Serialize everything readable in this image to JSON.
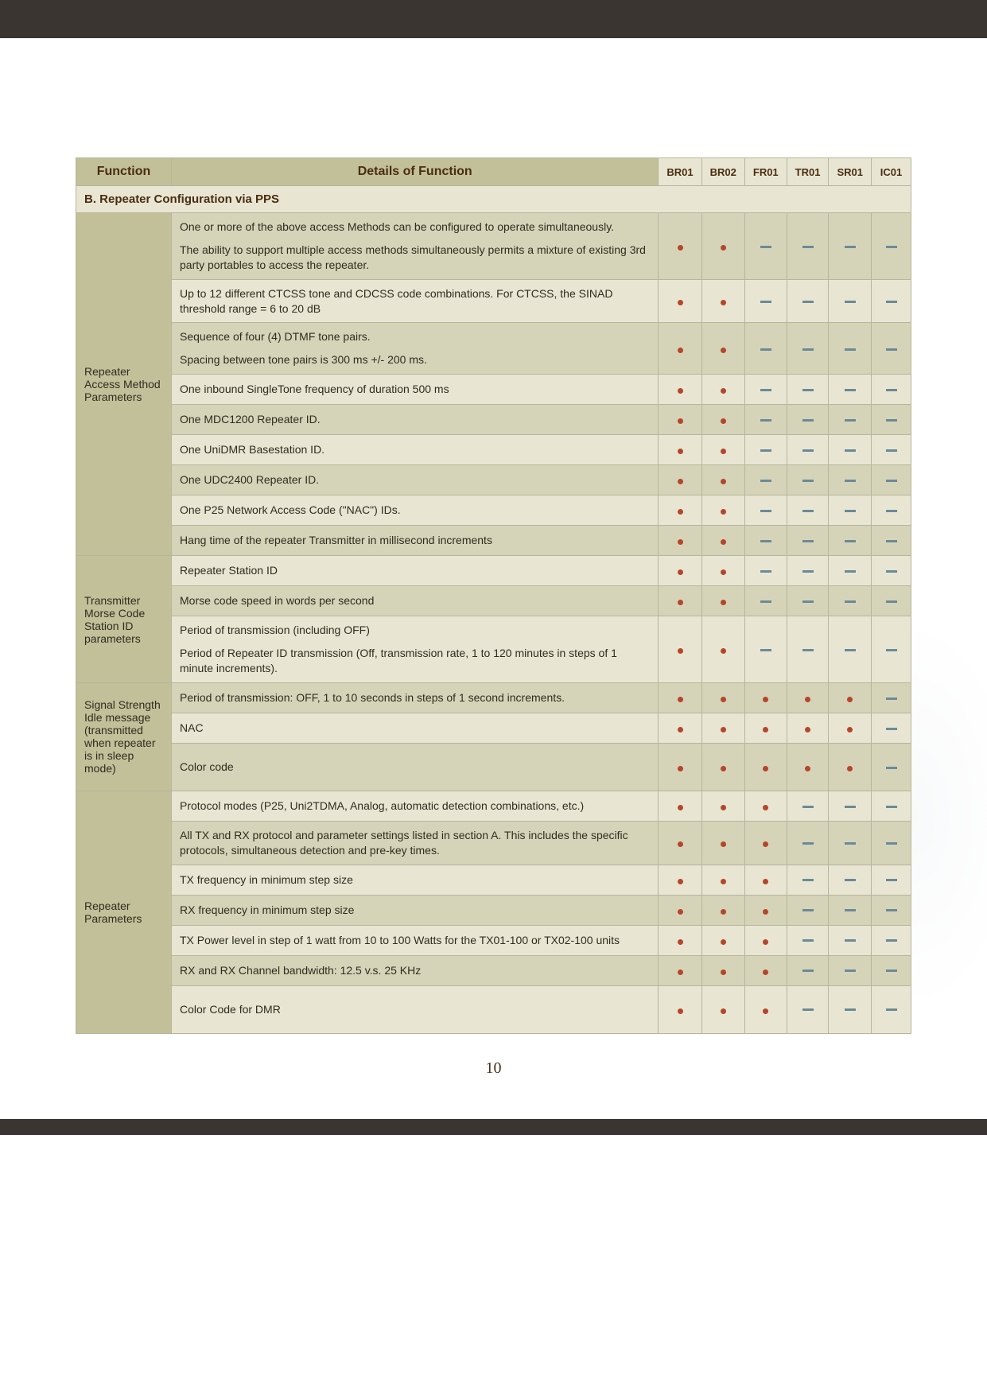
{
  "pageNumber": "10",
  "headers": {
    "function": "Function",
    "details": "Details of Function",
    "cols": [
      "BR01",
      "BR02",
      "FR01",
      "TR01",
      "SR01",
      "IC01"
    ]
  },
  "sectionTitle": "B. Repeater Configuration via PPS",
  "groups": [
    {
      "function": "Repeater Access Method Parameters",
      "rows": [
        {
          "shade": "dark",
          "detailsA": "One or more of the above access Methods can be configured to operate simultaneously.",
          "detailsB": "The ability to support multiple access methods simultaneously permits a mixture of existing 3rd party portables to access the repeater.",
          "marks": [
            "dot",
            "dot",
            "dash",
            "dash",
            "dash",
            "dash"
          ]
        },
        {
          "shade": "light",
          "details": "Up to 12 different CTCSS tone and CDCSS code combinations. For CTCSS, the SINAD threshold range = 6 to 20 dB",
          "marks": [
            "dot",
            "dot",
            "dash",
            "dash",
            "dash",
            "dash"
          ]
        },
        {
          "shade": "dark",
          "detailsA": "Sequence of four (4) DTMF tone pairs.",
          "detailsB": "Spacing between tone pairs is 300 ms +/- 200 ms.",
          "marks": [
            "dot",
            "dot",
            "dash",
            "dash",
            "dash",
            "dash"
          ]
        },
        {
          "shade": "light",
          "details": "One inbound SingleTone frequency of duration 500 ms",
          "marks": [
            "dot",
            "dot",
            "dash",
            "dash",
            "dash",
            "dash"
          ]
        },
        {
          "shade": "dark",
          "details": "One MDC1200 Repeater ID.",
          "marks": [
            "dot",
            "dot",
            "dash",
            "dash",
            "dash",
            "dash"
          ]
        },
        {
          "shade": "light",
          "details": "One UniDMR Basestation ID.",
          "marks": [
            "dot",
            "dot",
            "dash",
            "dash",
            "dash",
            "dash"
          ]
        },
        {
          "shade": "dark",
          "details": "One UDC2400 Repeater ID.",
          "marks": [
            "dot",
            "dot",
            "dash",
            "dash",
            "dash",
            "dash"
          ]
        },
        {
          "shade": "light",
          "details": "One P25 Network Access Code (\"NAC\") IDs.",
          "marks": [
            "dot",
            "dot",
            "dash",
            "dash",
            "dash",
            "dash"
          ]
        },
        {
          "shade": "dark",
          "details": "Hang time of the repeater Transmitter in millisecond increments",
          "marks": [
            "dot",
            "dot",
            "dash",
            "dash",
            "dash",
            "dash"
          ]
        }
      ]
    },
    {
      "function": "Transmitter Morse Code Station ID parameters",
      "rows": [
        {
          "shade": "light",
          "details": "Repeater Station ID",
          "marks": [
            "dot",
            "dot",
            "dash",
            "dash",
            "dash",
            "dash"
          ]
        },
        {
          "shade": "dark",
          "details": "Morse code speed in words per second",
          "marks": [
            "dot",
            "dot",
            "dash",
            "dash",
            "dash",
            "dash"
          ]
        },
        {
          "shade": "light",
          "detailsA": "Period of transmission (including OFF)",
          "detailsB": "Period of Repeater ID transmission (Off, transmission rate, 1 to 120 minutes in steps of 1 minute increments).",
          "marks": [
            "dot",
            "dot",
            "dash",
            "dash",
            "dash",
            "dash"
          ]
        }
      ]
    },
    {
      "function": "Signal Strength Idle message (transmitted when repeater is in sleep mode)",
      "rows": [
        {
          "shade": "dark",
          "details": "Period of transmission: OFF, 1 to 10 seconds in steps of 1 second increments.",
          "marks": [
            "dot",
            "dot",
            "dot",
            "dot",
            "dot",
            "dash"
          ]
        },
        {
          "shade": "light",
          "details": "NAC",
          "marks": [
            "dot",
            "dot",
            "dot",
            "dot",
            "dot",
            "dash"
          ]
        },
        {
          "shade": "dark",
          "details": "Color code",
          "marks": [
            "dot",
            "dot",
            "dot",
            "dot",
            "dot",
            "dash"
          ],
          "tall": true
        }
      ]
    },
    {
      "function": "Repeater Parameters",
      "rows": [
        {
          "shade": "light",
          "details": "Protocol modes (P25, Uni2TDMA, Analog, automatic detection combinations, etc.)",
          "marks": [
            "dot",
            "dot",
            "dot",
            "dash",
            "dash",
            "dash"
          ]
        },
        {
          "shade": "dark",
          "details": "All TX and RX protocol and parameter settings listed in section A. This includes the specific protocols, simultaneous detection and pre-key times.",
          "marks": [
            "dot",
            "dot",
            "dot",
            "dash",
            "dash",
            "dash"
          ]
        },
        {
          "shade": "light",
          "details": "TX frequency in minimum step size",
          "marks": [
            "dot",
            "dot",
            "dot",
            "dash",
            "dash",
            "dash"
          ]
        },
        {
          "shade": "dark",
          "details": "RX frequency in minimum step size",
          "marks": [
            "dot",
            "dot",
            "dot",
            "dash",
            "dash",
            "dash"
          ]
        },
        {
          "shade": "light",
          "details": "TX Power level in step of 1 watt from 10 to 100 Watts for the TX01-100 or TX02-100 units",
          "marks": [
            "dot",
            "dot",
            "dot",
            "dash",
            "dash",
            "dash"
          ]
        },
        {
          "shade": "dark",
          "details": "RX and RX Channel bandwidth: 12.5 v.s. 25 KHz",
          "marks": [
            "dot",
            "dot",
            "dot",
            "dash",
            "dash",
            "dash"
          ]
        },
        {
          "shade": "light",
          "details": "Color Code for DMR",
          "marks": [
            "dot",
            "dot",
            "dot",
            "dash",
            "dash",
            "dash"
          ],
          "tall": true
        }
      ]
    }
  ]
}
